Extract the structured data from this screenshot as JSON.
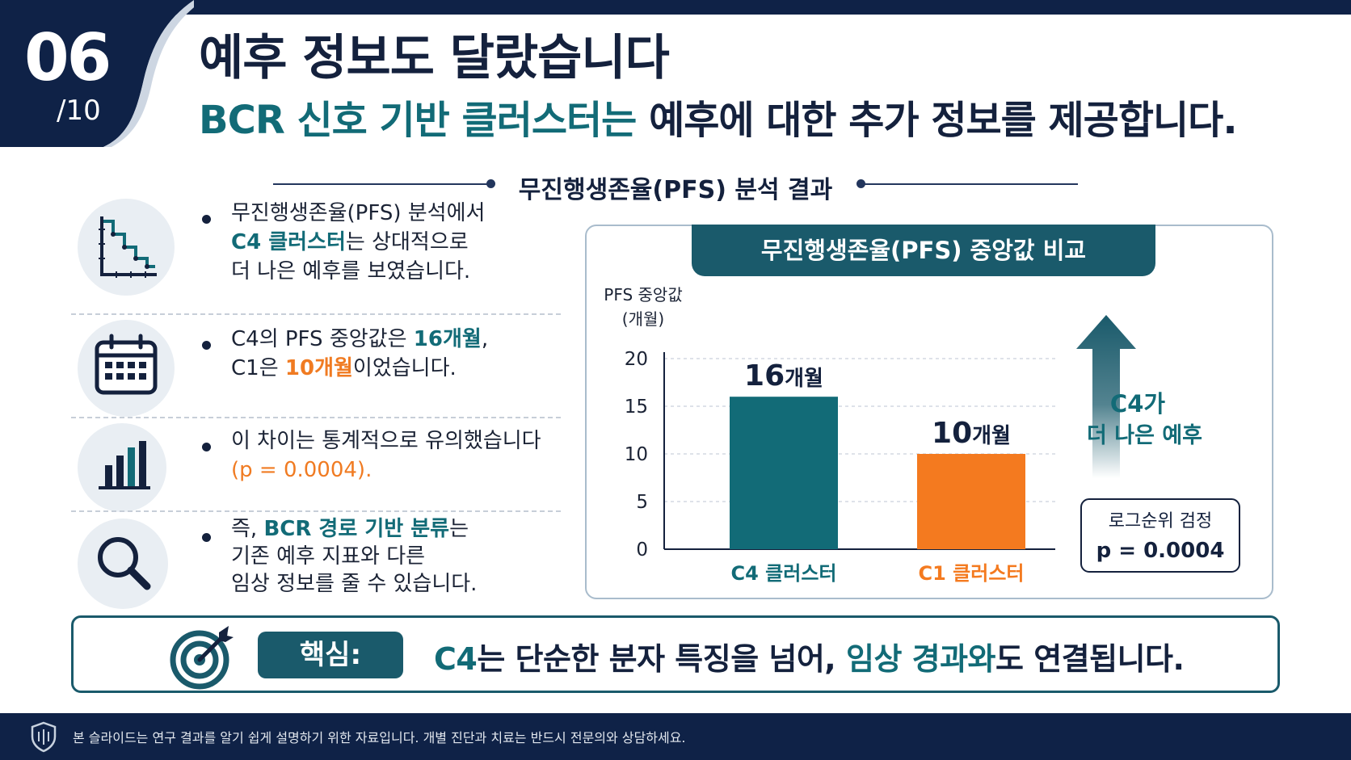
{
  "slide": {
    "number": "06",
    "total": "/10"
  },
  "header": {
    "title": "예후 정보도 달랐습니다",
    "subtitle_highlight": "BCR 신호 기반 클러스터는",
    "subtitle_rest": " 예후에 대한 추가 정보를 제공합니다."
  },
  "section": {
    "title": "무진행생존율(PFS) 분석 결과"
  },
  "findings": [
    {
      "icon": "survival-curve-icon",
      "lines": [
        "무진행생존율(PFS) 분석에서"
      ],
      "line2_highlight": "C4 클러스터",
      "line2_rest": "는 상대적으로",
      "line3": "더 나은 예후를 보였습니다."
    },
    {
      "icon": "calendar-icon",
      "line1_pre": "C4의 PFS 중앙값은 ",
      "line1_value": "16개월",
      "line1_post": ",",
      "line2_pre": "C1은 ",
      "line2_value": "10개월",
      "line2_post": "이었습니다."
    },
    {
      "icon": "bar-chart-icon",
      "line1": "이 차이는 통계적으로 유의했습니다",
      "line2": "(p = 0.0004)."
    },
    {
      "icon": "magnifier-icon",
      "line1_pre": "즉, ",
      "line1_highlight": "BCR 경로 기반 분류",
      "line1_post": "는",
      "line2": "기존 예후 지표와 다른",
      "line3": "임상 정보를 줄 수 있습니다."
    }
  ],
  "chart_data": {
    "type": "bar",
    "title": "무진행생존율(PFS) 중앙값 비교",
    "ylabel_line1": "PFS 중앙값",
    "ylabel_line2": "(개월)",
    "ylim": [
      0,
      20
    ],
    "yticks": [
      0,
      5,
      10,
      15,
      20
    ],
    "grid": true,
    "categories": [
      "C4 클러스터",
      "C1 클러스터"
    ],
    "values": [
      16,
      10
    ],
    "value_labels": [
      {
        "number": "16",
        "unit": "개월"
      },
      {
        "number": "10",
        "unit": "개월"
      }
    ],
    "colors": [
      "#126b77",
      "#f47a1f"
    ],
    "arrow_label_line1": "C4가",
    "arrow_label_line2": "더 나은 예후",
    "test_box": {
      "line1": "로그순위 검정",
      "line2": "p = 0.0004"
    }
  },
  "key": {
    "label": "핵심:",
    "seg1": "C4",
    "seg2": "는 단순한 분자 특징을 넘어, ",
    "seg3": "임상 경과와",
    "seg4": "도 연결됩니다."
  },
  "footer": {
    "text": "본 슬라이드는 연구 결과를 알기 쉽게 설명하기 위한 자료입니다. 개별 진단과 치료는 반드시 전문의와 상담하세요."
  },
  "colors": {
    "navy": "#0f2247",
    "teal": "#126b77",
    "teal_dark": "#1a5a6b",
    "orange": "#f47a1f"
  }
}
